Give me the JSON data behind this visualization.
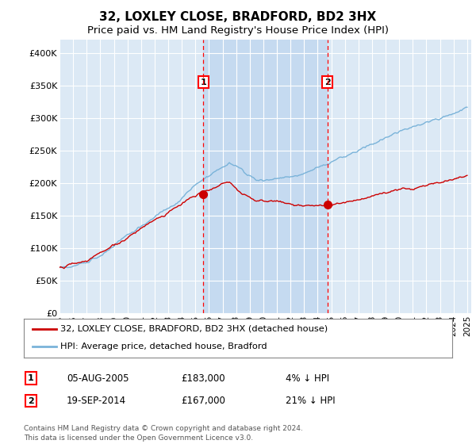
{
  "title": "32, LOXLEY CLOSE, BRADFORD, BD2 3HX",
  "subtitle": "Price paid vs. HM Land Registry's House Price Index (HPI)",
  "ylim": [
    0,
    420000
  ],
  "yticks": [
    0,
    50000,
    100000,
    150000,
    200000,
    250000,
    300000,
    350000,
    400000
  ],
  "ytick_labels": [
    "£0",
    "£50K",
    "£100K",
    "£150K",
    "£200K",
    "£250K",
    "£300K",
    "£350K",
    "£400K"
  ],
  "x_start_year": 1995,
  "x_end_year": 2025,
  "plot_bg_color": "#dce9f5",
  "shade_color": "#c5daf0",
  "hpi_color": "#7ab3d9",
  "price_color": "#cc0000",
  "marker_color": "#cc0000",
  "transaction1": {
    "date": "05-AUG-2005",
    "price": 183000,
    "label": "1",
    "year": 2005.58
  },
  "transaction2": {
    "date": "19-SEP-2014",
    "price": 167000,
    "label": "2",
    "year": 2014.71
  },
  "legend_line1": "32, LOXLEY CLOSE, BRADFORD, BD2 3HX (detached house)",
  "legend_line2": "HPI: Average price, detached house, Bradford",
  "table_row1": [
    "1",
    "05-AUG-2005",
    "£183,000",
    "4% ↓ HPI"
  ],
  "table_row2": [
    "2",
    "19-SEP-2014",
    "£167,000",
    "21% ↓ HPI"
  ],
  "footer": "Contains HM Land Registry data © Crown copyright and database right 2024.\nThis data is licensed under the Open Government Licence v3.0.",
  "title_fontsize": 11,
  "subtitle_fontsize": 9.5
}
